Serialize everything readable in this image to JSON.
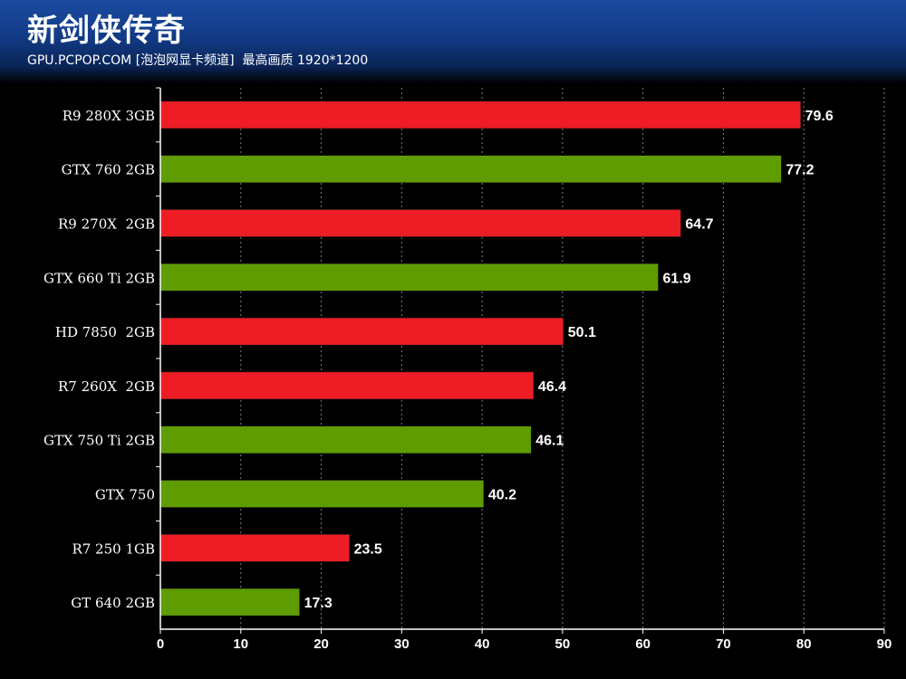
{
  "header": {
    "title": "新剑侠传奇",
    "subtitle": "GPU.PCPOP.COM [泡泡网显卡频道]  最高画质 1920*1200"
  },
  "colors": {
    "amd": "#ee1c25",
    "nvidia": "#5f9c00",
    "background": "#000000",
    "grid": "#7f7f7f"
  },
  "chart_data": {
    "type": "bar",
    "orientation": "horizontal",
    "title": "新剑侠传奇",
    "subtitle": "GPU.PCPOP.COM [泡泡网显卡频道]  最高画质 1920*1200",
    "categories": [
      "R9 280X 3GB",
      "GTX 760 2GB",
      "R9 270X  2GB",
      "GTX 660 Ti 2GB",
      "HD 7850  2GB",
      "R7 260X  2GB",
      "GTX 750 Ti 2GB",
      "GTX 750",
      "R7 250 1GB",
      "GT 640 2GB"
    ],
    "values": [
      79.6,
      77.2,
      64.7,
      61.9,
      50.1,
      46.4,
      46.1,
      40.2,
      23.5,
      17.3
    ],
    "value_labels": [
      "79.6",
      "77.2",
      "64.7",
      "61.9",
      "50.1",
      "46.4",
      "46.1",
      "40.2",
      "23.5",
      "17.3"
    ],
    "bar_vendor": [
      "amd",
      "nvidia",
      "amd",
      "nvidia",
      "amd",
      "amd",
      "nvidia",
      "nvidia",
      "amd",
      "nvidia"
    ],
    "xlim": [
      0,
      90
    ],
    "x_ticks": [
      0,
      10,
      20,
      30,
      40,
      50,
      60,
      70,
      80,
      90
    ],
    "x_tick_labels": [
      "0",
      "10",
      "20",
      "30",
      "40",
      "50",
      "60",
      "70",
      "80",
      "90"
    ],
    "grid": "vertical dashed",
    "legend": "none",
    "xlabel": "",
    "ylabel": ""
  }
}
